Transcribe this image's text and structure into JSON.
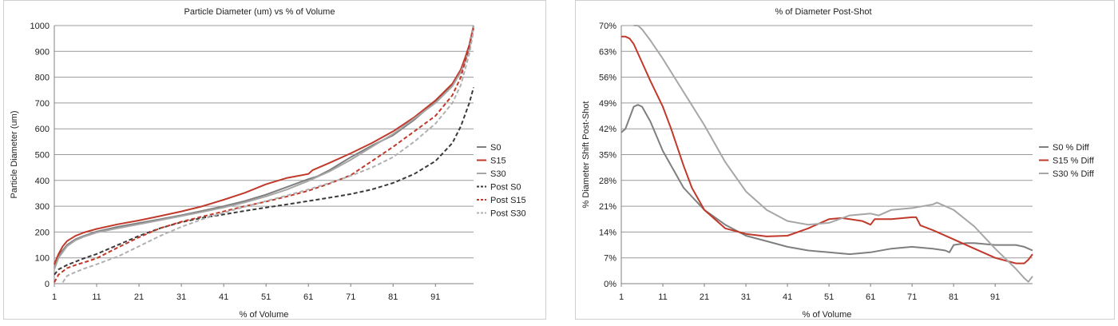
{
  "charts": [
    {
      "id": "left",
      "type": "line",
      "title": "Particle Diameter (um) vs % of Volume",
      "xlabel": "% of Volume",
      "ylabel": "Particle Diameter (um)",
      "x_ticks": [
        "1",
        "11",
        "21",
        "31",
        "41",
        "51",
        "61",
        "71",
        "81",
        "91"
      ],
      "y_ticks": [
        "0",
        "100",
        "200",
        "300",
        "400",
        "500",
        "600",
        "700",
        "800",
        "900",
        "1000"
      ],
      "xlim": [
        1,
        100
      ],
      "ylim": [
        0,
        1000
      ],
      "legend_position": "right",
      "series": [
        {
          "name": "S0",
          "color": "#7f7f7f",
          "dash": false,
          "x": [
            1,
            2,
            4,
            6,
            8,
            11,
            16,
            21,
            26,
            31,
            36,
            41,
            46,
            51,
            56,
            61,
            63,
            66,
            71,
            76,
            81,
            86,
            91,
            95,
            97,
            98,
            99,
            100
          ],
          "y": [
            60,
            110,
            150,
            172,
            185,
            202,
            220,
            235,
            250,
            265,
            282,
            300,
            320,
            345,
            375,
            405,
            415,
            440,
            490,
            535,
            575,
            635,
            705,
            770,
            825,
            870,
            920,
            1000
          ]
        },
        {
          "name": "S15",
          "color": "#c0392b",
          "dash": false,
          "x": [
            1,
            2,
            3,
            4,
            6,
            8,
            11,
            16,
            21,
            26,
            31,
            36,
            41,
            46,
            51,
            56,
            61,
            62,
            66,
            71,
            76,
            81,
            86,
            91,
            95,
            97,
            98,
            99,
            100
          ],
          "y": [
            75,
            115,
            145,
            165,
            185,
            198,
            212,
            230,
            245,
            262,
            280,
            300,
            325,
            352,
            385,
            410,
            425,
            440,
            468,
            505,
            545,
            590,
            645,
            710,
            775,
            830,
            875,
            925,
            1000
          ]
        },
        {
          "name": "S30",
          "color": "#a6a6a6",
          "dash": false,
          "x": [
            1,
            2,
            4,
            6,
            8,
            11,
            16,
            21,
            26,
            31,
            36,
            41,
            46,
            51,
            56,
            61,
            66,
            71,
            76,
            81,
            86,
            91,
            95,
            97,
            98,
            99,
            100
          ],
          "y": [
            55,
            100,
            145,
            168,
            182,
            198,
            215,
            230,
            246,
            262,
            278,
            295,
            315,
            338,
            365,
            398,
            435,
            480,
            530,
            580,
            640,
            700,
            765,
            820,
            860,
            910,
            1000
          ]
        },
        {
          "name": "Post S0",
          "color": "#3a3a3a",
          "dash": true,
          "x": [
            1,
            2,
            4,
            6,
            8,
            11,
            16,
            21,
            26,
            31,
            36,
            41,
            46,
            51,
            56,
            61,
            66,
            71,
            76,
            81,
            86,
            91,
            95,
            97,
            98,
            99,
            100
          ],
          "y": [
            35,
            55,
            72,
            85,
            98,
            115,
            150,
            185,
            215,
            238,
            255,
            268,
            282,
            295,
            307,
            320,
            333,
            347,
            365,
            390,
            425,
            475,
            545,
            610,
            655,
            700,
            760
          ]
        },
        {
          "name": "Post S15",
          "color": "#c0392b",
          "dash": true,
          "x": [
            1,
            2,
            4,
            6,
            8,
            11,
            16,
            21,
            26,
            31,
            36,
            41,
            46,
            51,
            56,
            61,
            66,
            71,
            76,
            81,
            86,
            91,
            95,
            97,
            98,
            99,
            100
          ],
          "y": [
            5,
            35,
            60,
            72,
            82,
            98,
            140,
            180,
            215,
            240,
            260,
            280,
            300,
            318,
            338,
            360,
            388,
            420,
            475,
            530,
            590,
            650,
            730,
            800,
            860,
            920,
            990
          ]
        },
        {
          "name": "Post S30",
          "color": "#b0b0b0",
          "dash": true,
          "x": [
            3,
            4,
            6,
            8,
            11,
            16,
            21,
            26,
            31,
            36,
            41,
            46,
            51,
            56,
            61,
            66,
            71,
            76,
            81,
            86,
            91,
            95,
            97,
            98,
            99,
            100
          ],
          "y": [
            5,
            30,
            45,
            58,
            75,
            105,
            145,
            185,
            220,
            250,
            275,
            298,
            320,
            342,
            365,
            390,
            418,
            450,
            490,
            550,
            620,
            700,
            770,
            830,
            890,
            980
          ]
        }
      ]
    },
    {
      "id": "right",
      "type": "line",
      "title": "% of Diameter Post-Shot",
      "xlabel": "% of Volume",
      "ylabel": "% Diameter Shift Post-Shot",
      "x_ticks": [
        "1",
        "11",
        "21",
        "31",
        "41",
        "51",
        "61",
        "71",
        "81",
        "91"
      ],
      "y_ticks": [
        "0%",
        "7%",
        "14%",
        "21%",
        "28%",
        "35%",
        "42%",
        "49%",
        "56%",
        "63%",
        "70%"
      ],
      "xlim": [
        1,
        100
      ],
      "ylim": [
        0,
        70
      ],
      "legend_position": "right",
      "series": [
        {
          "name": "S0 % Diff",
          "color": "#7f7f7f",
          "dash": false,
          "x": [
            1,
            2,
            3,
            4,
            5,
            6,
            8,
            11,
            16,
            21,
            26,
            31,
            36,
            41,
            46,
            51,
            56,
            61,
            66,
            71,
            76,
            79,
            80,
            81,
            84,
            86,
            91,
            96,
            98,
            99,
            100
          ],
          "y": [
            41,
            42,
            45,
            48,
            48.5,
            48,
            44,
            36,
            26,
            20,
            16,
            13,
            11.5,
            10,
            9,
            8.5,
            8,
            8.5,
            9.5,
            10,
            9.5,
            9,
            8.5,
            10.5,
            11,
            11,
            10.5,
            10.5,
            10,
            9.5,
            9
          ]
        },
        {
          "name": "S15 % Diff",
          "color": "#c0392b",
          "dash": false,
          "x": [
            1,
            2,
            3,
            4,
            6,
            8,
            11,
            13,
            16,
            18,
            21,
            26,
            31,
            36,
            41,
            46,
            51,
            54,
            56,
            59,
            61,
            62,
            66,
            71,
            72,
            73,
            76,
            81,
            86,
            91,
            96,
            98,
            99,
            100
          ],
          "y": [
            67,
            67,
            66.5,
            65,
            60,
            55,
            48,
            42,
            32,
            26,
            20,
            15,
            13.5,
            12.8,
            13,
            15,
            17.5,
            17.8,
            17.5,
            17,
            16,
            17.5,
            17.5,
            18,
            18,
            15.8,
            14.5,
            12,
            9.5,
            7,
            5.5,
            5.5,
            6.5,
            8
          ]
        },
        {
          "name": "S30 % Diff",
          "color": "#a6a6a6",
          "dash": false,
          "x": [
            4,
            5,
            6,
            8,
            11,
            16,
            21,
            26,
            31,
            36,
            41,
            46,
            51,
            56,
            61,
            63,
            66,
            71,
            76,
            77,
            78,
            81,
            86,
            91,
            96,
            98,
            99,
            100
          ],
          "y": [
            70,
            70,
            69,
            66,
            61,
            52,
            43,
            33,
            25,
            20,
            17,
            16,
            16.5,
            18.5,
            19,
            18.5,
            20,
            20.5,
            21.5,
            22,
            21.5,
            20,
            15.5,
            9.5,
            4,
            1.5,
            0.5,
            2
          ]
        }
      ]
    }
  ]
}
